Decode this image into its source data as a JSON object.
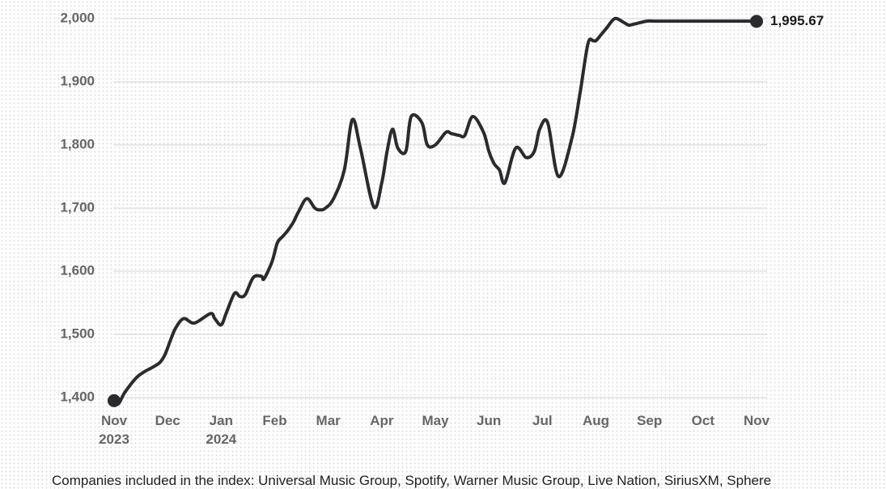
{
  "chart_data": {
    "type": "line",
    "ylim": [
      1400,
      2000
    ],
    "y_ticks": [
      "1,400",
      "1,500",
      "1,600",
      "1,700",
      "1,800",
      "1,900",
      "2,000"
    ],
    "y_tick_values": [
      1400,
      1500,
      1600,
      1700,
      1800,
      1900,
      2000
    ],
    "x_ticks": [
      {
        "label": "Nov",
        "year": "2023"
      },
      {
        "label": "Dec",
        "year": ""
      },
      {
        "label": "Jan",
        "year": "2024"
      },
      {
        "label": "Feb",
        "year": ""
      },
      {
        "label": "Mar",
        "year": ""
      },
      {
        "label": "Apr",
        "year": ""
      },
      {
        "label": "May",
        "year": ""
      },
      {
        "label": "Jun",
        "year": ""
      },
      {
        "label": "Jul",
        "year": ""
      },
      {
        "label": "Aug",
        "year": ""
      },
      {
        "label": "Sep",
        "year": ""
      },
      {
        "label": "Oct",
        "year": ""
      },
      {
        "label": "Nov",
        "year": ""
      }
    ],
    "grid": true,
    "series": [
      {
        "x": [
          0,
          0.08,
          0.2,
          0.4,
          0.55,
          0.7,
          0.85,
          0.95,
          1.05,
          1.15,
          1.3,
          1.5,
          1.8,
          1.88,
          2.0,
          2.1,
          2.25,
          2.35,
          2.45,
          2.6,
          2.75,
          2.8,
          2.95,
          3.05,
          3.15,
          3.25,
          3.35,
          3.45,
          3.6,
          3.75,
          3.85,
          3.95,
          4.1,
          4.3,
          4.45,
          4.6,
          4.85,
          5.0,
          5.1,
          5.2,
          5.3,
          5.45,
          5.55,
          5.75,
          5.85,
          6.0,
          6.2,
          6.3,
          6.45,
          6.55,
          6.7,
          6.9,
          7.0,
          7.1,
          7.2,
          7.3,
          7.5,
          7.7,
          7.85,
          7.95,
          8.1,
          8.3,
          8.55,
          8.7,
          8.85,
          8.95,
          9.0,
          9.1,
          9.2,
          9.35,
          9.5,
          9.6,
          9.65,
          9.75,
          9.95,
          10.1,
          10.3,
          10.45,
          10.55,
          10.6,
          10.75,
          10.85,
          11.0,
          11.2,
          11.4,
          11.6,
          11.85,
          11.95,
          12.0
        ],
        "y": [
          1395,
          1390,
          1408,
          1430,
          1440,
          1447,
          1455,
          1468,
          1490,
          1510,
          1525,
          1518,
          1533,
          1525,
          1515,
          1535,
          1565,
          1560,
          1563,
          1590,
          1592,
          1588,
          1615,
          1645,
          1655,
          1665,
          1678,
          1695,
          1715,
          1700,
          1697,
          1700,
          1715,
          1760,
          1840,
          1795,
          1702,
          1740,
          1790,
          1825,
          1795,
          1790,
          1845,
          1835,
          1800,
          1800,
          1820,
          1818,
          1815,
          1815,
          1845,
          1820,
          1790,
          1770,
          1760,
          1740,
          1795,
          1780,
          1790,
          1825,
          1835,
          1750,
          1810,
          1880,
          1960,
          1965,
          1965,
          1975,
          1985,
          2000,
          1995,
          1990,
          1990,
          1992,
          1996,
          1996,
          1996,
          1996,
          1996,
          1996,
          1996,
          1996,
          1996,
          1996,
          1996,
          1996,
          1996,
          1996,
          1995.67
        ]
      }
    ],
    "end_label": "1,995.67",
    "line_color": "#2b2b2e",
    "grid_color": "#dcdcdc"
  },
  "footnote": "Companies included in the index: Universal Music Group, Spotify, Warner Music Group, Live Nation, SiriusXM, Sphere"
}
